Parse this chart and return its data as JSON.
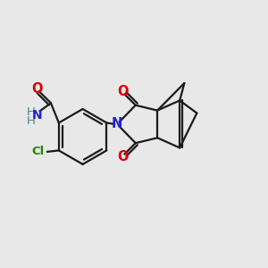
{
  "bg_color": "#e8e8e8",
  "bond_color": "#1a1a1a",
  "N_color": "#2222cc",
  "O_color": "#dd0000",
  "Cl_color": "#228800",
  "NH_color": "#448888",
  "lw": 1.6,
  "fs": 9.5,
  "xlim": [
    0,
    10
  ],
  "ylim": [
    0,
    10
  ]
}
